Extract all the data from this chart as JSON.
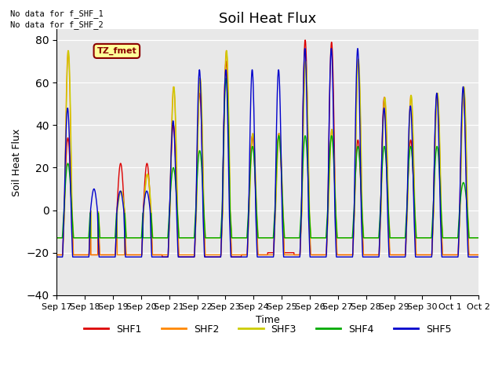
{
  "title": "Soil Heat Flux",
  "xlabel": "Time",
  "ylabel": "Soil Heat Flux",
  "ylim": [
    -40,
    85
  ],
  "yticks": [
    -40,
    -20,
    0,
    20,
    40,
    60,
    80
  ],
  "background_color": "#ffffff",
  "plot_bg_color": "#e8e8e8",
  "annotations": [
    "No data for f_SHF_1",
    "No data for f_SHF_2"
  ],
  "legend_box_label": "TZ_fmet",
  "legend_box_color": "#ffff99",
  "legend_box_border": "#8b0000",
  "series_colors": {
    "SHF1": "#dd0000",
    "SHF2": "#ff8800",
    "SHF3": "#cccc00",
    "SHF4": "#00aa00",
    "SHF5": "#0000cc"
  },
  "x_tick_labels": [
    "Sep 17",
    "Sep 18",
    "Sep 19",
    "Sep 20",
    "Sep 21",
    "Sep 22",
    "Sep 23",
    "Sep 24",
    "Sep 25",
    "Sep 26",
    "Sep 27",
    "Sep 28",
    "Sep 29",
    "Sep 30",
    "Oct 1",
    "Oct 2"
  ],
  "line_width": 1.0,
  "font_size_title": 13,
  "font_size_labels": 9,
  "font_size_ticks": 8,
  "font_size_legend": 9,
  "n_pts_per_day": 144,
  "shf1_peaks": [
    34,
    0,
    22,
    22,
    40,
    55,
    70,
    35,
    36,
    80,
    79,
    33,
    53,
    33,
    55,
    55
  ],
  "shf2_peaks": [
    75,
    0,
    0,
    17,
    58,
    62,
    75,
    36,
    36,
    70,
    38,
    71,
    53,
    54,
    55,
    58
  ],
  "shf3_peaks": [
    75,
    0,
    9,
    17,
    58,
    62,
    75,
    36,
    36,
    70,
    38,
    71,
    53,
    54,
    55,
    58
  ],
  "shf4_peaks": [
    22,
    0,
    0,
    0,
    20,
    28,
    62,
    30,
    35,
    35,
    35,
    30,
    30,
    30,
    30,
    13
  ],
  "shf5_peaks": [
    48,
    10,
    9,
    9,
    42,
    66,
    66,
    66,
    66,
    76,
    76,
    76,
    48,
    49,
    55,
    58
  ],
  "shf1_troughs": [
    -21,
    -21,
    -21,
    -21,
    -22,
    -22,
    -22,
    -21,
    -20,
    -21,
    -21,
    -21,
    -21,
    -21,
    -21,
    -21
  ],
  "shf2_troughs": [
    -21,
    -21,
    -21,
    -21,
    -21,
    -21,
    -21,
    -21,
    -21,
    -21,
    -21,
    -21,
    -21,
    -21,
    -21,
    -21
  ],
  "shf3_troughs": [
    -13,
    -13,
    -13,
    -13,
    -13,
    -13,
    -13,
    -13,
    -13,
    -13,
    -13,
    -13,
    -13,
    -13,
    -13,
    -13
  ],
  "shf4_troughs": [
    -13,
    -13,
    -13,
    -13,
    -13,
    -13,
    -13,
    -13,
    -13,
    -13,
    -13,
    -13,
    -13,
    -13,
    -13,
    -13
  ],
  "shf5_troughs": [
    -22,
    -22,
    -22,
    -22,
    -22,
    -22,
    -22,
    -22,
    -22,
    -22,
    -22,
    -22,
    -22,
    -22,
    -22,
    -22
  ]
}
